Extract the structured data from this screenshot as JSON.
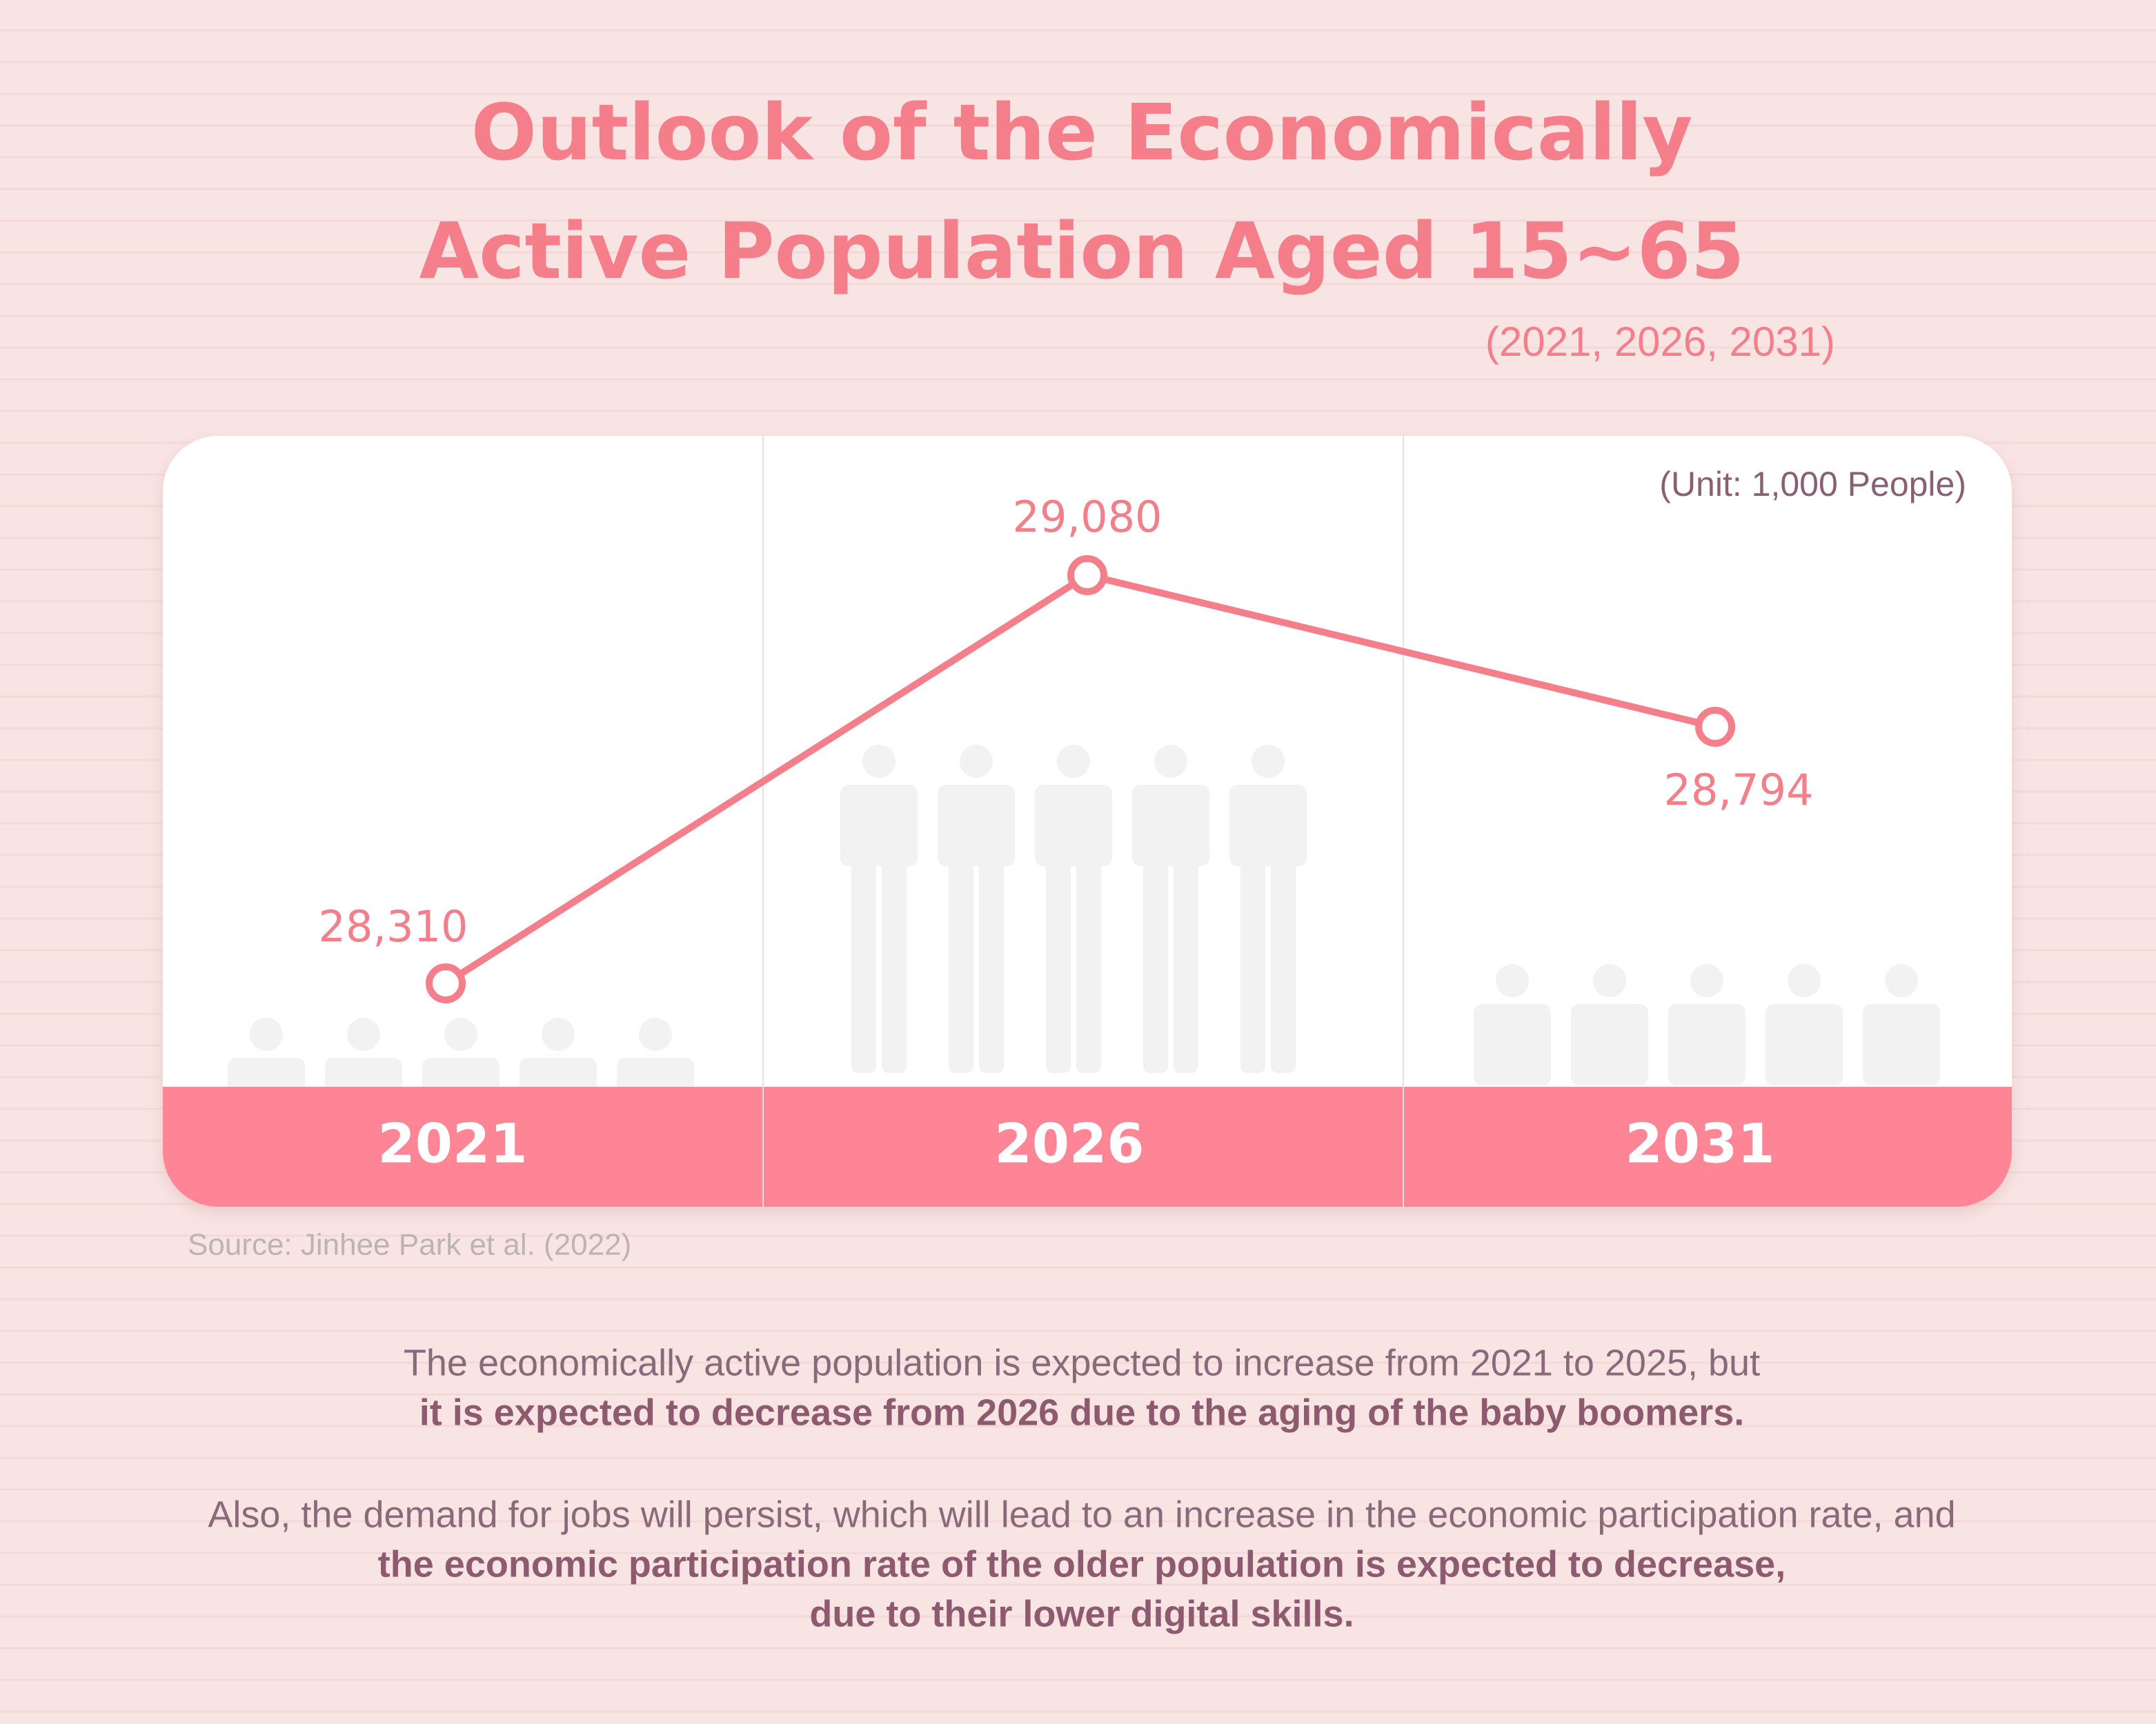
{
  "chart_data": {
    "type": "line",
    "title": [
      "Outlook of the Economically",
      "Active Population Aged 15~65"
    ],
    "subtitle": "(2021, 2026, 2031)",
    "unit_note": "(Unit: 1,000 People)",
    "categories": [
      "2021",
      "2026",
      "2031"
    ],
    "values": [
      28310,
      29080,
      28794
    ],
    "value_labels": [
      "28,310",
      "29,080",
      "28,794"
    ],
    "color": "#f47f8a",
    "source": "Source: Jinhee Park et al. (2022)"
  },
  "notes": [
    {
      "plain": [
        "The economically active population is expected to increase from 2021 to 2025, but"
      ],
      "bold": [
        "it is expected to decrease from 2026 due to the aging of the baby boomers."
      ]
    },
    {
      "plain": [
        "Also, the demand for jobs will persist, which will lead to an increase in the economic participation rate, and"
      ],
      "bold": [
        "the economic participation rate of the older population is expected to decrease,",
        "due to their lower digital skills."
      ]
    }
  ]
}
